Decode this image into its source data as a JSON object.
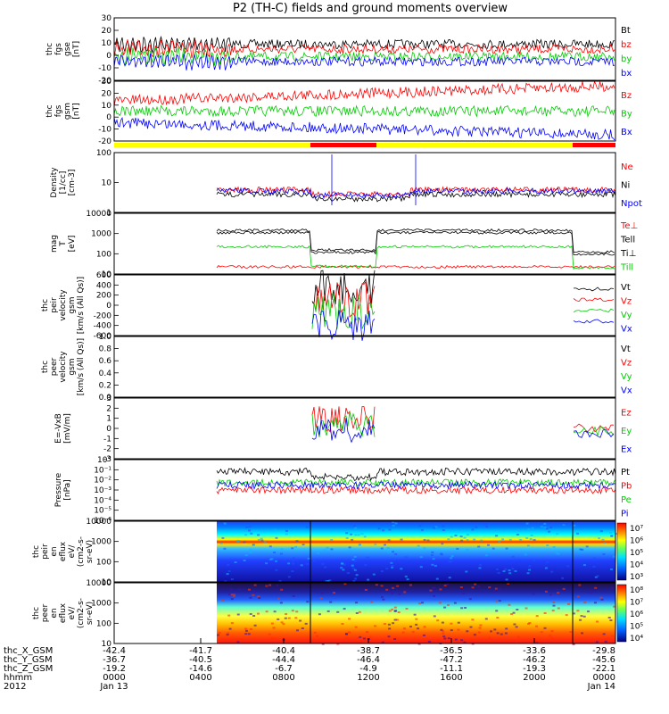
{
  "title": "P2 (TH-C) fields and ground moments overview",
  "colors": {
    "black": "#000000",
    "red": "#ff0000",
    "green": "#00cc00",
    "blue": "#0000ff",
    "yellow": "#ffff00"
  },
  "x_axis": {
    "rows": [
      {
        "label": "thc_X_GSM",
        "values": [
          "-42.4",
          "-41.7",
          "-40.4",
          "-38.7",
          "-36.5",
          "-33.6",
          "-29.8"
        ]
      },
      {
        "label": "thc_Y_GSM",
        "values": [
          "-36.7",
          "-40.5",
          "-44.4",
          "-46.4",
          "-47.2",
          "-46.2",
          "-45.6"
        ]
      },
      {
        "label": "thc_Z_GSM",
        "values": [
          "-19.2",
          "-14.6",
          "-6.7",
          "-4.9",
          "-11.1",
          "-19.3",
          "-22.1"
        ]
      },
      {
        "label": "hhmm",
        "values": [
          "0000",
          "0400",
          "0800",
          "1200",
          "1600",
          "2000",
          "0000"
        ]
      },
      {
        "label": "2012",
        "values": [
          "Jan 13",
          "",
          "",
          "",
          "",
          "",
          "Jan 14"
        ]
      }
    ]
  },
  "chart_data": [
    {
      "type": "line",
      "id": "fgs_gse",
      "ylabel": [
        "thc",
        "fgs",
        "gse",
        "[nT]"
      ],
      "ylim": [
        -20,
        30
      ],
      "yticks": [
        "30",
        "20",
        "10",
        "0",
        "-10",
        "-20"
      ],
      "series": [
        {
          "name": "Bt",
          "color": "black"
        },
        {
          "name": "bz",
          "color": "red"
        },
        {
          "name": "by",
          "color": "green"
        },
        {
          "name": "bx",
          "color": "blue"
        }
      ]
    },
    {
      "type": "line",
      "id": "fgs_gsm",
      "ylabel": [
        "thc",
        "fgs",
        "gsm",
        "[nT]"
      ],
      "ylim": [
        -20,
        30
      ],
      "yticks": [
        "30",
        "20",
        "10",
        "0",
        "-10",
        "-20"
      ],
      "series": [
        {
          "name": "Bz",
          "color": "red"
        },
        {
          "name": "By",
          "color": "green"
        },
        {
          "name": "Bx",
          "color": "blue"
        }
      ]
    },
    {
      "type": "line",
      "id": "density",
      "ylabel": [
        "Density",
        "[1/cc]",
        "[cm-3]"
      ],
      "log": true,
      "yticks": [
        "100",
        "10",
        "1"
      ],
      "series": [
        {
          "name": "Ne",
          "color": "red"
        },
        {
          "name": "Ni",
          "color": "black"
        },
        {
          "name": "Npot",
          "color": "blue"
        }
      ]
    },
    {
      "type": "line",
      "id": "temp",
      "ylabel": [
        "mag",
        "T",
        "[eV]"
      ],
      "log": true,
      "yticks": [
        "10000",
        "1000",
        "100",
        "10"
      ],
      "series": [
        {
          "name": "Te⊥",
          "color": "red"
        },
        {
          "name": "Tell",
          "color": "black"
        },
        {
          "name": "Ti⊥",
          "color": "black"
        },
        {
          "name": "Till",
          "color": "green"
        }
      ]
    },
    {
      "type": "line",
      "id": "peir_velocity",
      "ylabel": [
        "thc",
        "peir",
        "velocity",
        "gsm",
        "[km/s (All Qs)]"
      ],
      "ylim": [
        -600,
        600
      ],
      "yticks": [
        "600",
        "400",
        "200",
        "0",
        "-200",
        "-400",
        "-600"
      ],
      "series": [
        {
          "name": "Vt",
          "color": "black"
        },
        {
          "name": "Vz",
          "color": "red"
        },
        {
          "name": "Vy",
          "color": "green"
        },
        {
          "name": "Vx",
          "color": "blue"
        }
      ]
    },
    {
      "type": "line",
      "id": "peer_velocity",
      "ylabel": [
        "thc",
        "peer",
        "velocity",
        "gsm",
        "[km/s (All Qs)]"
      ],
      "ylim": [
        0,
        1
      ],
      "yticks": [
        "1.0",
        "0.8",
        "0.6",
        "0.4",
        "0.2",
        "0.0"
      ],
      "series": [
        {
          "name": "Vt",
          "color": "black"
        },
        {
          "name": "Vz",
          "color": "red"
        },
        {
          "name": "Vy",
          "color": "green"
        },
        {
          "name": "Vx",
          "color": "blue"
        }
      ]
    },
    {
      "type": "line",
      "id": "efield",
      "ylabel": [
        "E=-VxB",
        "[mV/m]"
      ],
      "ylim": [
        -3,
        3
      ],
      "yticks": [
        "3",
        "2",
        "1",
        "0",
        "-1",
        "-2",
        "-3"
      ],
      "series": [
        {
          "name": "Ez",
          "color": "red"
        },
        {
          "name": "Ey",
          "color": "green"
        },
        {
          "name": "Ex",
          "color": "blue"
        }
      ]
    },
    {
      "type": "line",
      "id": "pressure",
      "ylabel": [
        "Pressure",
        "[nPa]"
      ],
      "log": true,
      "yticks": [
        "10°",
        "10⁻¹",
        "10⁻²",
        "10⁻³",
        "10⁻⁴",
        "10⁻⁵",
        "10⁻⁶"
      ],
      "series": [
        {
          "name": "Pt",
          "color": "black"
        },
        {
          "name": "Pb",
          "color": "red"
        },
        {
          "name": "Pe",
          "color": "green"
        },
        {
          "name": "Pi",
          "color": "blue"
        }
      ]
    },
    {
      "type": "heatmap",
      "id": "peir_spec",
      "ylabel": [
        "thc",
        "peir",
        "en",
        "eflux",
        "eV/",
        "(cm2-s-",
        "sr-eV)"
      ],
      "yticks": [
        "10000",
        "1000",
        "100",
        "10"
      ],
      "colorbar": [
        "10⁷",
        "10⁶",
        "10⁵",
        "10⁴",
        "10³"
      ]
    },
    {
      "type": "heatmap",
      "id": "peer_spec",
      "ylabel": [
        "thc",
        "peer",
        "en",
        "eflux",
        "eV/",
        "(cm2-s-",
        "sr-eV)"
      ],
      "yticks": [
        "10000",
        "1000",
        "100",
        "10"
      ],
      "colorbar": [
        "10⁸",
        "10⁷",
        "10⁶",
        "10⁵",
        "10⁴"
      ]
    }
  ]
}
